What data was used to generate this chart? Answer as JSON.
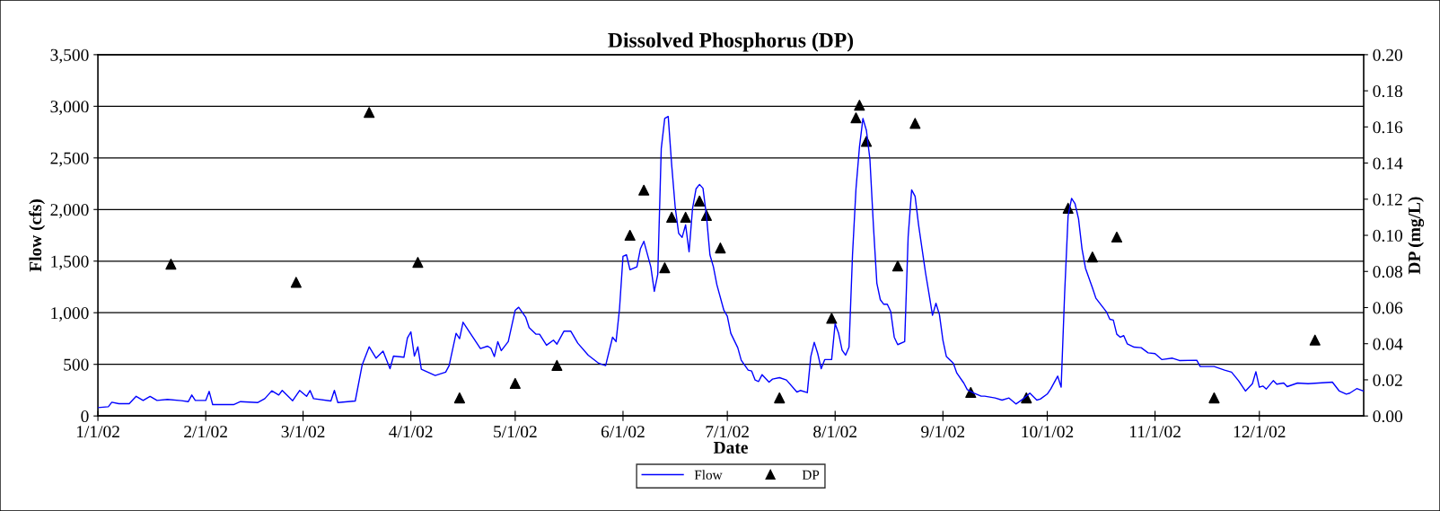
{
  "chart_data": {
    "type": "line",
    "title": "Dissolved Phosphorus (DP)",
    "xlabel": "Date",
    "ylabel": "Flow (cfs)",
    "y2label": "DP (mg/L)",
    "xlim": [
      "2002-01-01",
      "2002-12-31"
    ],
    "xticks": [
      {
        "value": "2002-01-01",
        "label": "1/1/02"
      },
      {
        "value": "2002-02-01",
        "label": "2/1/02"
      },
      {
        "value": "2002-03-01",
        "label": "3/1/02"
      },
      {
        "value": "2002-04-01",
        "label": "4/1/02"
      },
      {
        "value": "2002-05-01",
        "label": "5/1/02"
      },
      {
        "value": "2002-06-01",
        "label": "6/1/02"
      },
      {
        "value": "2002-07-01",
        "label": "7/1/02"
      },
      {
        "value": "2002-08-01",
        "label": "8/1/02"
      },
      {
        "value": "2002-09-01",
        "label": "9/1/02"
      },
      {
        "value": "2002-10-01",
        "label": "10/1/02"
      },
      {
        "value": "2002-11-01",
        "label": "11/1/02"
      },
      {
        "value": "2002-12-01",
        "label": "12/1/02"
      }
    ],
    "ylim": [
      0,
      3500
    ],
    "yticks": [
      {
        "value": 0,
        "label": "0"
      },
      {
        "value": 500,
        "label": "500"
      },
      {
        "value": 1000,
        "label": "1,000"
      },
      {
        "value": 1500,
        "label": "1,500"
      },
      {
        "value": 2000,
        "label": "2,000"
      },
      {
        "value": 2500,
        "label": "2,500"
      },
      {
        "value": 3000,
        "label": "3,000"
      },
      {
        "value": 3500,
        "label": "3,500"
      }
    ],
    "y2lim": [
      0,
      0.2
    ],
    "y2ticks": [
      {
        "value": 0,
        "label": "0.00"
      },
      {
        "value": 0.02,
        "label": "0.02"
      },
      {
        "value": 0.04,
        "label": "0.04"
      },
      {
        "value": 0.06,
        "label": "0.06"
      },
      {
        "value": 0.08,
        "label": "0.08"
      },
      {
        "value": 0.1,
        "label": "0.10"
      },
      {
        "value": 0.12,
        "label": "0.12"
      },
      {
        "value": 0.14,
        "label": "0.14"
      },
      {
        "value": 0.16,
        "label": "0.16"
      },
      {
        "value": 0.18,
        "label": "0.18"
      },
      {
        "value": 0.2,
        "label": "0.20"
      }
    ],
    "grid": "y",
    "legend": "bottom",
    "series": [
      {
        "name": "Flow",
        "color": "#0000ff",
        "marker": "none",
        "line_style": "solid",
        "x": [
          "2002-01-01",
          "2002-01-04",
          "2002-01-05",
          "2002-01-07",
          "2002-01-10",
          "2002-01-12",
          "2002-01-14",
          "2002-01-16",
          "2002-01-18",
          "2002-01-21",
          "2002-01-25",
          "2002-01-27",
          "2002-01-28",
          "2002-01-29",
          "2002-02-01",
          "2002-02-02",
          "2002-02-03",
          "2002-02-09",
          "2002-02-11",
          "2002-02-16",
          "2002-02-18",
          "2002-02-20",
          "2002-02-22",
          "2002-02-23",
          "2002-02-26",
          "2002-02-28",
          "2002-03-02",
          "2002-03-03",
          "2002-03-04",
          "2002-03-09",
          "2002-03-10",
          "2002-03-11",
          "2002-03-16",
          "2002-03-18",
          "2002-03-20",
          "2002-03-22",
          "2002-03-24",
          "2002-03-26",
          "2002-03-27",
          "2002-03-30",
          "2002-03-31",
          "2002-04-01",
          "2002-04-02",
          "2002-04-03",
          "2002-04-04",
          "2002-04-08",
          "2002-04-11",
          "2002-04-12",
          "2002-04-14",
          "2002-04-15",
          "2002-04-16",
          "2002-04-21",
          "2002-04-23",
          "2002-04-24",
          "2002-04-25",
          "2002-04-26",
          "2002-04-27",
          "2002-04-29",
          "2002-05-01",
          "2002-05-02",
          "2002-05-04",
          "2002-05-05",
          "2002-05-07",
          "2002-05-08",
          "2002-05-10",
          "2002-05-12",
          "2002-05-13",
          "2002-05-15",
          "2002-05-17",
          "2002-05-19",
          "2002-05-22",
          "2002-05-25",
          "2002-05-27",
          "2002-05-29",
          "2002-05-30",
          "2002-05-31",
          "2002-06-01",
          "2002-06-02",
          "2002-06-03",
          "2002-06-05",
          "2002-06-06",
          "2002-06-07",
          "2002-06-09",
          "2002-06-10",
          "2002-06-11",
          "2002-06-12",
          "2002-06-13",
          "2002-06-14",
          "2002-06-15",
          "2002-06-16",
          "2002-06-17",
          "2002-06-18",
          "2002-06-19",
          "2002-06-20",
          "2002-06-21",
          "2002-06-22",
          "2002-06-23",
          "2002-06-24",
          "2002-06-25",
          "2002-06-26",
          "2002-06-27",
          "2002-06-28",
          "2002-06-30",
          "2002-07-01",
          "2002-07-02",
          "2002-07-04",
          "2002-07-05",
          "2002-07-07",
          "2002-07-08",
          "2002-07-09",
          "2002-07-10",
          "2002-07-11",
          "2002-07-13",
          "2002-07-14",
          "2002-07-16",
          "2002-07-18",
          "2002-07-21",
          "2002-07-22",
          "2002-07-24",
          "2002-07-25",
          "2002-07-26",
          "2002-07-27",
          "2002-07-28",
          "2002-07-29",
          "2002-07-31",
          "2002-08-01",
          "2002-08-02",
          "2002-08-03",
          "2002-08-04",
          "2002-08-05",
          "2002-08-06",
          "2002-08-07",
          "2002-08-08",
          "2002-08-09",
          "2002-08-10",
          "2002-08-11",
          "2002-08-12",
          "2002-08-13",
          "2002-08-14",
          "2002-08-15",
          "2002-08-16",
          "2002-08-17",
          "2002-08-18",
          "2002-08-19",
          "2002-08-21",
          "2002-08-22",
          "2002-08-23",
          "2002-08-24",
          "2002-08-25",
          "2002-08-26",
          "2002-08-27",
          "2002-08-28",
          "2002-08-29",
          "2002-08-30",
          "2002-08-31",
          "2002-09-01",
          "2002-09-02",
          "2002-09-04",
          "2002-09-05",
          "2002-09-07",
          "2002-09-08",
          "2002-09-10",
          "2002-09-12",
          "2002-09-13",
          "2002-09-16",
          "2002-09-18",
          "2002-09-20",
          "2002-09-22",
          "2002-09-24",
          "2002-09-26",
          "2002-09-28",
          "2002-09-29",
          "2002-10-01",
          "2002-10-02",
          "2002-10-04",
          "2002-10-05",
          "2002-10-06",
          "2002-10-07",
          "2002-10-08",
          "2002-10-09",
          "2002-10-10",
          "2002-10-11",
          "2002-10-12",
          "2002-10-14",
          "2002-10-15",
          "2002-10-17",
          "2002-10-18",
          "2002-10-19",
          "2002-10-20",
          "2002-10-21",
          "2002-10-22",
          "2002-10-23",
          "2002-10-24",
          "2002-10-26",
          "2002-10-28",
          "2002-10-30",
          "2002-11-01",
          "2002-11-03",
          "2002-11-06",
          "2002-11-08",
          "2002-11-13",
          "2002-11-14",
          "2002-11-18",
          "2002-11-21",
          "2002-11-23",
          "2002-11-25",
          "2002-11-27",
          "2002-11-29",
          "2002-11-30",
          "2002-12-01",
          "2002-12-02",
          "2002-12-03",
          "2002-12-05",
          "2002-12-06",
          "2002-12-08",
          "2002-12-09",
          "2002-12-12",
          "2002-12-15",
          "2002-12-22",
          "2002-12-24",
          "2002-12-26",
          "2002-12-27",
          "2002-12-29",
          "2002-12-31"
        ],
        "values": [
          81,
          90,
          133,
          119,
          119,
          190,
          150,
          190,
          150,
          160,
          148,
          139,
          203,
          150,
          150,
          238,
          110,
          110,
          139,
          130,
          168,
          244,
          203,
          247,
          148,
          247,
          190,
          247,
          168,
          145,
          247,
          130,
          145,
          496,
          670,
          560,
          627,
          458,
          580,
          569,
          755,
          815,
          580,
          670,
          453,
          392,
          424,
          488,
          801,
          749,
          908,
          653,
          676,
          656,
          575,
          720,
          633,
          720,
          1024,
          1053,
          958,
          856,
          792,
          792,
          685,
          734,
          696,
          821,
          821,
          705,
          589,
          511,
          488,
          763,
          720,
          1039,
          1547,
          1561,
          1416,
          1445,
          1619,
          1692,
          1445,
          1207,
          1373,
          2591,
          2882,
          2902,
          2432,
          2026,
          1770,
          1730,
          1851,
          1590,
          2011,
          2200,
          2243,
          2206,
          1939,
          1561,
          1445,
          1271,
          1024,
          966,
          801,
          662,
          540,
          444,
          435,
          348,
          334,
          400,
          328,
          357,
          371,
          348,
          232,
          247,
          226,
          575,
          714,
          604,
          458,
          546,
          546,
          894,
          801,
          638,
          589,
          667,
          1561,
          2200,
          2606,
          2882,
          2766,
          2490,
          1851,
          1286,
          1126,
          1082,
          1082,
          1010,
          763,
          691,
          720,
          1735,
          2191,
          2127,
          1851,
          1619,
          1387,
          1184,
          975,
          1091,
          981,
          734,
          575,
          511,
          415,
          319,
          255,
          221,
          192,
          192,
          174,
          154,
          174,
          116,
          163,
          221,
          154,
          163,
          212,
          261,
          386,
          279,
          1184,
          1939,
          2107,
          2055,
          1910,
          1619,
          1431,
          1242,
          1140,
          1053,
          1010,
          937,
          929,
          792,
          763,
          778,
          699,
          667,
          662,
          612,
          604,
          546,
          560,
          537,
          540,
          479,
          479,
          444,
          424,
          342,
          241,
          313,
          429,
          279,
          290,
          261,
          342,
          308,
          319,
          284,
          319,
          313,
          328,
          241,
          212,
          221,
          265,
          240
        ]
      },
      {
        "name": "DP",
        "type": "scatter",
        "axis": "y2",
        "color": "#000000",
        "marker": "triangle",
        "x": [
          "2002-01-22",
          "2002-02-27",
          "2002-03-20",
          "2002-04-03",
          "2002-04-15",
          "2002-05-01",
          "2002-05-13",
          "2002-06-03",
          "2002-06-07",
          "2002-06-13",
          "2002-06-15",
          "2002-06-19",
          "2002-06-23",
          "2002-06-25",
          "2002-06-29",
          "2002-07-16",
          "2002-07-31",
          "2002-08-07",
          "2002-08-08",
          "2002-08-10",
          "2002-08-19",
          "2002-08-24",
          "2002-09-09",
          "2002-09-25",
          "2002-10-07",
          "2002-10-14",
          "2002-10-21",
          "2002-11-18",
          "2002-12-17"
        ],
        "values": [
          0.084,
          0.074,
          0.168,
          0.085,
          0.01,
          0.018,
          0.028,
          0.1,
          0.125,
          0.082,
          0.11,
          0.11,
          0.119,
          0.111,
          0.093,
          0.01,
          0.054,
          0.165,
          0.172,
          0.152,
          0.083,
          0.162,
          0.013,
          0.01,
          0.115,
          0.088,
          0.099,
          0.01,
          0.042
        ]
      }
    ]
  }
}
